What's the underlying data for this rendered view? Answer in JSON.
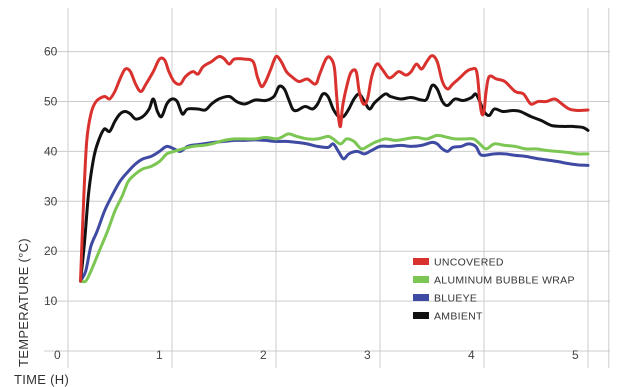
{
  "chart_data": {
    "type": "line",
    "xlabel": "TIME (H)",
    "ylabel": "TEMPERATURE (°C)",
    "xlim": [
      0,
      5.2
    ],
    "ylim": [
      0,
      68
    ],
    "x_ticks": [
      "0",
      "1",
      "2",
      "3",
      "4",
      "5"
    ],
    "y_ticks": [
      "10",
      "20",
      "30",
      "40",
      "50",
      "60"
    ],
    "grid": true,
    "legend_position": "bottom-right",
    "series": [
      {
        "name": "UNCOVERED",
        "color": "#d9322e",
        "points": [
          [
            0.12,
            14
          ],
          [
            0.15,
            30
          ],
          [
            0.18,
            42
          ],
          [
            0.22,
            47.5
          ],
          [
            0.27,
            50
          ],
          [
            0.35,
            51
          ],
          [
            0.4,
            50.5
          ],
          [
            0.45,
            52
          ],
          [
            0.5,
            54.5
          ],
          [
            0.55,
            56.5
          ],
          [
            0.6,
            56
          ],
          [
            0.65,
            53.5
          ],
          [
            0.7,
            52
          ],
          [
            0.75,
            53.5
          ],
          [
            0.82,
            56
          ],
          [
            0.88,
            58.5
          ],
          [
            0.93,
            58.3
          ],
          [
            0.97,
            56
          ],
          [
            1.02,
            54
          ],
          [
            1.08,
            53.5
          ],
          [
            1.13,
            55
          ],
          [
            1.2,
            56
          ],
          [
            1.25,
            55.5
          ],
          [
            1.3,
            57
          ],
          [
            1.38,
            58
          ],
          [
            1.45,
            59
          ],
          [
            1.5,
            58.6
          ],
          [
            1.55,
            57.5
          ],
          [
            1.6,
            58.5
          ],
          [
            1.7,
            58.5
          ],
          [
            1.78,
            58
          ],
          [
            1.82,
            55
          ],
          [
            1.86,
            53
          ],
          [
            1.9,
            54
          ],
          [
            1.95,
            56.5
          ],
          [
            2.0,
            59
          ],
          [
            2.05,
            58
          ],
          [
            2.1,
            56
          ],
          [
            2.15,
            55
          ],
          [
            2.22,
            54
          ],
          [
            2.3,
            54.5
          ],
          [
            2.38,
            53.5
          ],
          [
            2.42,
            55.5
          ],
          [
            2.48,
            58.5
          ],
          [
            2.52,
            58.8
          ],
          [
            2.56,
            57
          ],
          [
            2.58,
            52
          ],
          [
            2.6,
            47
          ],
          [
            2.62,
            45
          ],
          [
            2.64,
            49
          ],
          [
            2.68,
            53
          ],
          [
            2.72,
            55.8
          ],
          [
            2.77,
            56
          ],
          [
            2.8,
            52
          ],
          [
            2.84,
            49.5
          ],
          [
            2.88,
            50.5
          ],
          [
            2.92,
            55
          ],
          [
            2.97,
            57.5
          ],
          [
            3.02,
            56.5
          ],
          [
            3.08,
            54.8
          ],
          [
            3.12,
            55
          ],
          [
            3.18,
            56
          ],
          [
            3.25,
            55.3
          ],
          [
            3.3,
            56
          ],
          [
            3.35,
            57.5
          ],
          [
            3.4,
            56.5
          ],
          [
            3.45,
            58
          ],
          [
            3.5,
            59.2
          ],
          [
            3.55,
            58
          ],
          [
            3.6,
            54
          ],
          [
            3.65,
            52.5
          ],
          [
            3.7,
            53.5
          ],
          [
            3.78,
            55
          ],
          [
            3.83,
            56
          ],
          [
            3.88,
            56.5
          ],
          [
            3.93,
            56
          ],
          [
            3.96,
            50
          ],
          [
            3.98,
            47.5
          ],
          [
            4.0,
            48
          ],
          [
            4.02,
            52
          ],
          [
            4.05,
            55
          ],
          [
            4.12,
            54.5
          ],
          [
            4.2,
            54
          ],
          [
            4.3,
            52
          ],
          [
            4.38,
            51.5
          ],
          [
            4.45,
            49.5
          ],
          [
            4.52,
            50
          ],
          [
            4.6,
            50
          ],
          [
            4.68,
            50.5
          ],
          [
            4.75,
            49.5
          ],
          [
            4.82,
            48.5
          ],
          [
            4.9,
            48.2
          ],
          [
            5.0,
            48.3
          ]
        ]
      },
      {
        "name": "ALUMINUM BUBBLE WRAP",
        "color": "#7cc653",
        "points": [
          [
            0.12,
            14
          ],
          [
            0.17,
            14
          ],
          [
            0.22,
            16
          ],
          [
            0.3,
            20
          ],
          [
            0.38,
            24
          ],
          [
            0.45,
            28
          ],
          [
            0.52,
            31
          ],
          [
            0.58,
            34
          ],
          [
            0.65,
            35.5
          ],
          [
            0.72,
            36.5
          ],
          [
            0.8,
            37
          ],
          [
            0.88,
            38
          ],
          [
            0.95,
            39.5
          ],
          [
            1.02,
            40
          ],
          [
            1.1,
            40.5
          ],
          [
            1.2,
            41
          ],
          [
            1.3,
            41.2
          ],
          [
            1.38,
            41.5
          ],
          [
            1.5,
            42.2
          ],
          [
            1.6,
            42.5
          ],
          [
            1.7,
            42.5
          ],
          [
            1.8,
            42.5
          ],
          [
            1.9,
            42.8
          ],
          [
            2.0,
            42.5
          ],
          [
            2.05,
            42.8
          ],
          [
            2.12,
            43.5
          ],
          [
            2.2,
            43
          ],
          [
            2.3,
            42.5
          ],
          [
            2.4,
            42.5
          ],
          [
            2.5,
            43
          ],
          [
            2.55,
            42.5
          ],
          [
            2.62,
            41.5
          ],
          [
            2.68,
            42.5
          ],
          [
            2.75,
            42
          ],
          [
            2.82,
            40.5
          ],
          [
            2.88,
            41
          ],
          [
            2.95,
            41.8
          ],
          [
            3.05,
            42.5
          ],
          [
            3.15,
            42.2
          ],
          [
            3.25,
            42.5
          ],
          [
            3.35,
            42.8
          ],
          [
            3.45,
            42.5
          ],
          [
            3.55,
            43.2
          ],
          [
            3.65,
            42.8
          ],
          [
            3.72,
            42.5
          ],
          [
            3.82,
            42.5
          ],
          [
            3.9,
            42.5
          ],
          [
            3.96,
            41.5
          ],
          [
            4.02,
            40.5
          ],
          [
            4.1,
            41.5
          ],
          [
            4.2,
            41.2
          ],
          [
            4.3,
            41
          ],
          [
            4.4,
            40.5
          ],
          [
            4.5,
            40.5
          ],
          [
            4.6,
            40.2
          ],
          [
            4.7,
            40
          ],
          [
            4.8,
            39.8
          ],
          [
            4.9,
            39.5
          ],
          [
            5.0,
            39.5
          ]
        ]
      },
      {
        "name": "BLUEYE",
        "color": "#3f4aa3",
        "points": [
          [
            0.12,
            14
          ],
          [
            0.17,
            16
          ],
          [
            0.22,
            21
          ],
          [
            0.28,
            24
          ],
          [
            0.35,
            28
          ],
          [
            0.42,
            31
          ],
          [
            0.5,
            34
          ],
          [
            0.58,
            36
          ],
          [
            0.65,
            37.5
          ],
          [
            0.72,
            38.5
          ],
          [
            0.8,
            39
          ],
          [
            0.88,
            40
          ],
          [
            0.95,
            41
          ],
          [
            1.02,
            40.5
          ],
          [
            1.08,
            40
          ],
          [
            1.15,
            41
          ],
          [
            1.22,
            41.3
          ],
          [
            1.3,
            41.5
          ],
          [
            1.4,
            41.8
          ],
          [
            1.5,
            42
          ],
          [
            1.6,
            42.2
          ],
          [
            1.7,
            42.2
          ],
          [
            1.8,
            42.3
          ],
          [
            1.9,
            42.2
          ],
          [
            2.0,
            42
          ],
          [
            2.1,
            42
          ],
          [
            2.2,
            41.8
          ],
          [
            2.3,
            41.5
          ],
          [
            2.4,
            41
          ],
          [
            2.5,
            40.8
          ],
          [
            2.55,
            41.5
          ],
          [
            2.6,
            40
          ],
          [
            2.65,
            38.5
          ],
          [
            2.7,
            39.5
          ],
          [
            2.78,
            40
          ],
          [
            2.85,
            39.5
          ],
          [
            2.92,
            40.2
          ],
          [
            3.0,
            41
          ],
          [
            3.1,
            41
          ],
          [
            3.2,
            41.2
          ],
          [
            3.3,
            41
          ],
          [
            3.4,
            41.2
          ],
          [
            3.5,
            41.8
          ],
          [
            3.55,
            41.5
          ],
          [
            3.6,
            40.5
          ],
          [
            3.65,
            40
          ],
          [
            3.7,
            40.8
          ],
          [
            3.78,
            41
          ],
          [
            3.85,
            41.5
          ],
          [
            3.92,
            41
          ],
          [
            3.96,
            39.5
          ],
          [
            4.0,
            39.2
          ],
          [
            4.1,
            39.5
          ],
          [
            4.2,
            39.5
          ],
          [
            4.3,
            39.2
          ],
          [
            4.4,
            39
          ],
          [
            4.5,
            38.6
          ],
          [
            4.6,
            38.3
          ],
          [
            4.7,
            38
          ],
          [
            4.8,
            37.6
          ],
          [
            4.9,
            37.3
          ],
          [
            5.0,
            37.2
          ]
        ]
      },
      {
        "name": "AMBIENT",
        "color": "#111111",
        "points": [
          [
            0.12,
            14
          ],
          [
            0.16,
            22
          ],
          [
            0.2,
            32
          ],
          [
            0.25,
            39
          ],
          [
            0.3,
            42.5
          ],
          [
            0.35,
            44.5
          ],
          [
            0.4,
            44
          ],
          [
            0.45,
            46
          ],
          [
            0.5,
            47.5
          ],
          [
            0.55,
            48
          ],
          [
            0.6,
            47.5
          ],
          [
            0.65,
            46.5
          ],
          [
            0.72,
            47
          ],
          [
            0.78,
            48.5
          ],
          [
            0.82,
            50.5
          ],
          [
            0.86,
            48
          ],
          [
            0.9,
            47
          ],
          [
            0.95,
            49.5
          ],
          [
            1.0,
            50.5
          ],
          [
            1.05,
            50
          ],
          [
            1.1,
            47.5
          ],
          [
            1.15,
            48.5
          ],
          [
            1.25,
            48.5
          ],
          [
            1.32,
            48.3
          ],
          [
            1.38,
            49.5
          ],
          [
            1.45,
            50.5
          ],
          [
            1.55,
            51
          ],
          [
            1.62,
            50
          ],
          [
            1.7,
            49.5
          ],
          [
            1.8,
            50.3
          ],
          [
            1.9,
            50.2
          ],
          [
            1.98,
            51
          ],
          [
            2.03,
            53
          ],
          [
            2.08,
            52.5
          ],
          [
            2.12,
            50.5
          ],
          [
            2.16,
            48.5
          ],
          [
            2.2,
            48.2
          ],
          [
            2.28,
            49
          ],
          [
            2.35,
            48.5
          ],
          [
            2.4,
            49.5
          ],
          [
            2.45,
            51.5
          ],
          [
            2.5,
            51
          ],
          [
            2.55,
            48.5
          ],
          [
            2.6,
            47
          ],
          [
            2.65,
            47
          ],
          [
            2.7,
            48.5
          ],
          [
            2.75,
            50.5
          ],
          [
            2.8,
            51.5
          ],
          [
            2.85,
            50
          ],
          [
            2.9,
            48.5
          ],
          [
            2.95,
            49.8
          ],
          [
            3.05,
            51.5
          ],
          [
            3.1,
            51
          ],
          [
            3.2,
            50.5
          ],
          [
            3.3,
            50.8
          ],
          [
            3.4,
            50.3
          ],
          [
            3.45,
            50.5
          ],
          [
            3.5,
            53.2
          ],
          [
            3.55,
            52.5
          ],
          [
            3.6,
            50
          ],
          [
            3.65,
            49.2
          ],
          [
            3.72,
            50.5
          ],
          [
            3.8,
            50.2
          ],
          [
            3.88,
            50.8
          ],
          [
            3.92,
            51.5
          ],
          [
            3.96,
            50
          ],
          [
            4.0,
            48
          ],
          [
            4.05,
            47.2
          ],
          [
            4.1,
            48.5
          ],
          [
            4.18,
            48
          ],
          [
            4.28,
            48.2
          ],
          [
            4.35,
            48
          ],
          [
            4.45,
            47
          ],
          [
            4.55,
            46.2
          ],
          [
            4.65,
            45.2
          ],
          [
            4.75,
            45
          ],
          [
            4.85,
            45
          ],
          [
            4.95,
            44.8
          ],
          [
            5.0,
            44.2
          ]
        ]
      }
    ]
  }
}
